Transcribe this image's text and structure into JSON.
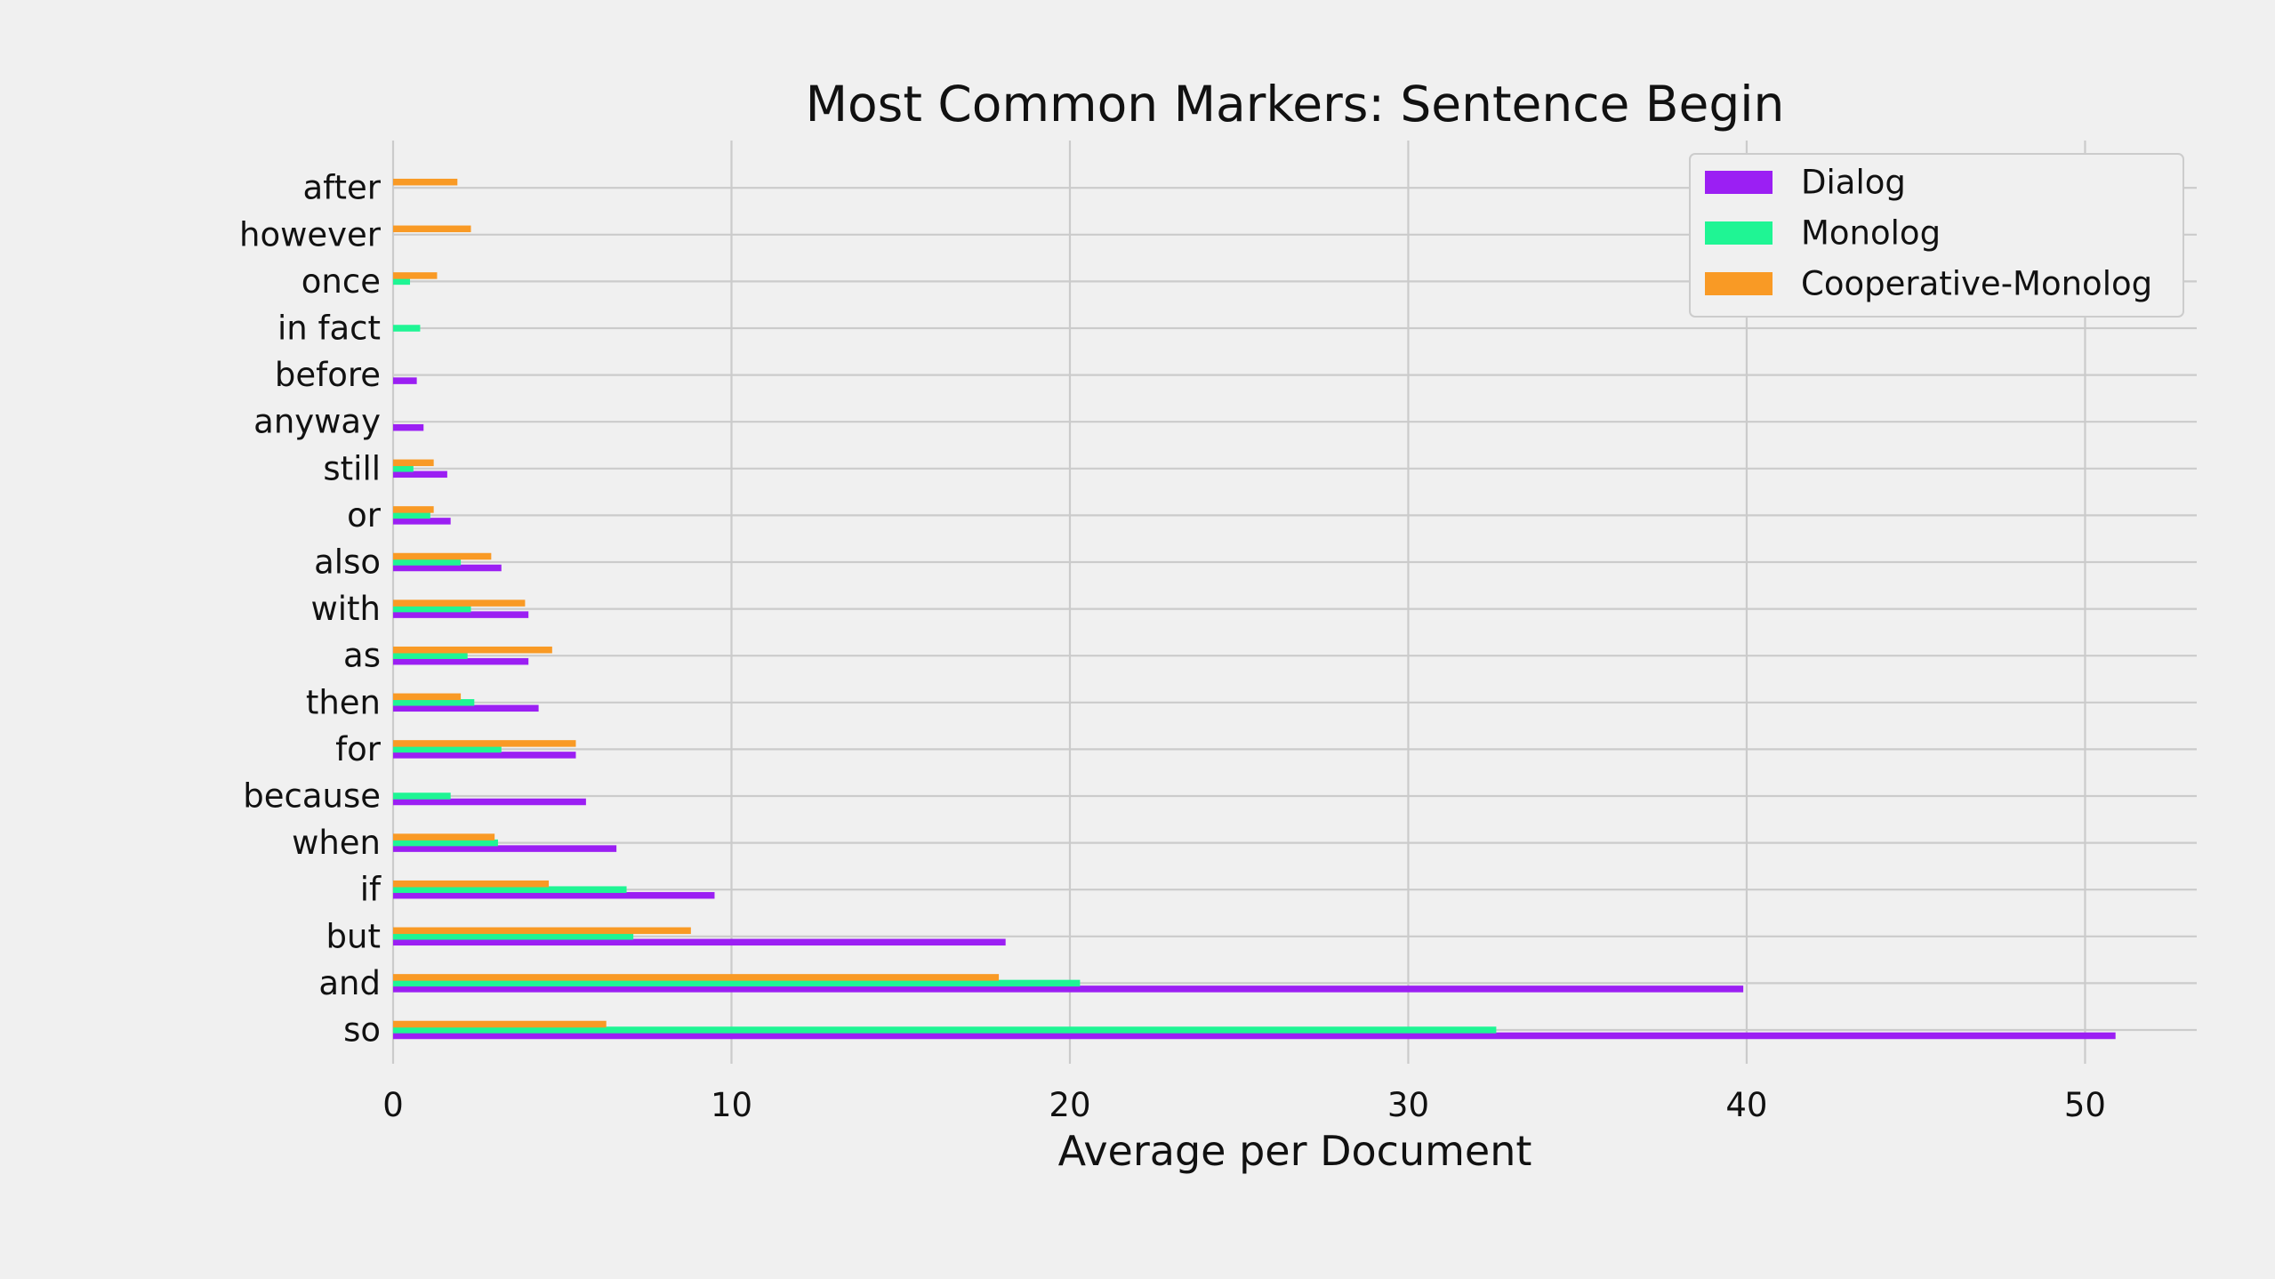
{
  "chart_data": {
    "type": "bar",
    "orientation": "horizontal",
    "title": "Most Common Markers: Sentence Begin",
    "xlabel": "Average per Document",
    "ylabel": "",
    "xlim": [
      0,
      53.3
    ],
    "xticks": [
      0,
      10,
      20,
      30,
      40,
      50
    ],
    "grid": true,
    "legend_position": "top-right",
    "categories": [
      "so",
      "and",
      "but",
      "if",
      "when",
      "because",
      "for",
      "then",
      "as",
      "with",
      "also",
      "or",
      "still",
      "anyway",
      "before",
      "in fact",
      "once",
      "however",
      "after"
    ],
    "series": [
      {
        "name": "Dialog",
        "color": "#9b1ff3",
        "values": [
          50.9,
          39.9,
          18.1,
          9.5,
          6.6,
          5.7,
          5.4,
          4.3,
          4.0,
          4.0,
          3.2,
          1.7,
          1.6,
          0.9,
          0.7,
          0,
          0,
          0,
          0
        ]
      },
      {
        "name": "Monolog",
        "color": "#1ff594",
        "values": [
          32.6,
          20.3,
          7.1,
          6.9,
          3.1,
          1.7,
          3.2,
          2.4,
          2.2,
          2.3,
          2.0,
          1.1,
          0.6,
          0,
          0,
          0.8,
          0.5,
          0,
          0
        ]
      },
      {
        "name": "Cooperative-Monolog",
        "color": "#f99a25",
        "values": [
          6.3,
          17.9,
          8.8,
          4.6,
          3.0,
          0,
          5.4,
          2.0,
          4.7,
          3.9,
          2.9,
          1.2,
          1.2,
          0,
          0,
          0,
          1.3,
          2.3,
          1.9
        ]
      }
    ]
  }
}
